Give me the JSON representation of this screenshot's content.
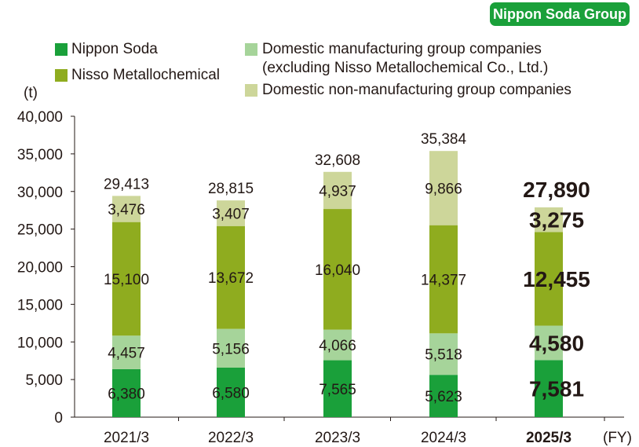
{
  "badge": "Nippon Soda Group",
  "legend": [
    {
      "label": "Nippon Soda",
      "color": "#1aa03a"
    },
    {
      "label": "Nisso Metallochemical",
      "color": "#8fac1f"
    },
    {
      "label": "Domestic manufacturing group companies",
      "label2": "(excluding Nisso Metallochemical Co., Ltd.)",
      "color": "#a6d49a"
    },
    {
      "label": "Domestic non-manufacturing group companies",
      "color": "#cdd69a"
    }
  ],
  "chart_data": {
    "type": "bar",
    "stacked": true,
    "categories": [
      "2021/3",
      "2022/3",
      "2023/3",
      "2024/3",
      "2025/3"
    ],
    "highlight_category": "2025/3",
    "xlabel": "(FY)",
    "ylabel": "(t)",
    "ylim": [
      0,
      40000
    ],
    "yticks": [
      0,
      5000,
      10000,
      15000,
      20000,
      25000,
      30000,
      35000,
      40000
    ],
    "ytick_labels": [
      "0",
      "5,000",
      "10,000",
      "15,000",
      "20,000",
      "25,000",
      "30,000",
      "35,000",
      "40,000"
    ],
    "grid": false,
    "legend_position": "top",
    "series": [
      {
        "name": "Nippon Soda",
        "color": "#1aa03a",
        "values": [
          6380,
          6580,
          7565,
          5623,
          7581
        ],
        "labels": [
          "6,380",
          "6,580",
          "7,565",
          "5,623",
          "7,581"
        ]
      },
      {
        "name": "Domestic manufacturing group companies (excluding Nisso Metallochemical Co., Ltd.)",
        "color": "#a6d49a",
        "values": [
          4457,
          5156,
          4066,
          5518,
          4580
        ],
        "labels": [
          "4,457",
          "5,156",
          "4,066",
          "5,518",
          "4,580"
        ]
      },
      {
        "name": "Nisso Metallochemical",
        "color": "#8fac1f",
        "values": [
          15100,
          13672,
          16040,
          14377,
          12455
        ],
        "labels": [
          "15,100",
          "13,672",
          "16,040",
          "14,377",
          "12,455"
        ]
      },
      {
        "name": "Domestic non-manufacturing group companies",
        "color": "#cdd69a",
        "values": [
          3476,
          3407,
          4937,
          9866,
          3275
        ],
        "labels": [
          "3,476",
          "3,407",
          "4,937",
          "9,866",
          "3,275"
        ]
      }
    ],
    "totals": [
      29413,
      28815,
      32608,
      35384,
      27890
    ],
    "total_labels": [
      "29,413",
      "28,815",
      "32,608",
      "35,384",
      "27,890"
    ]
  }
}
